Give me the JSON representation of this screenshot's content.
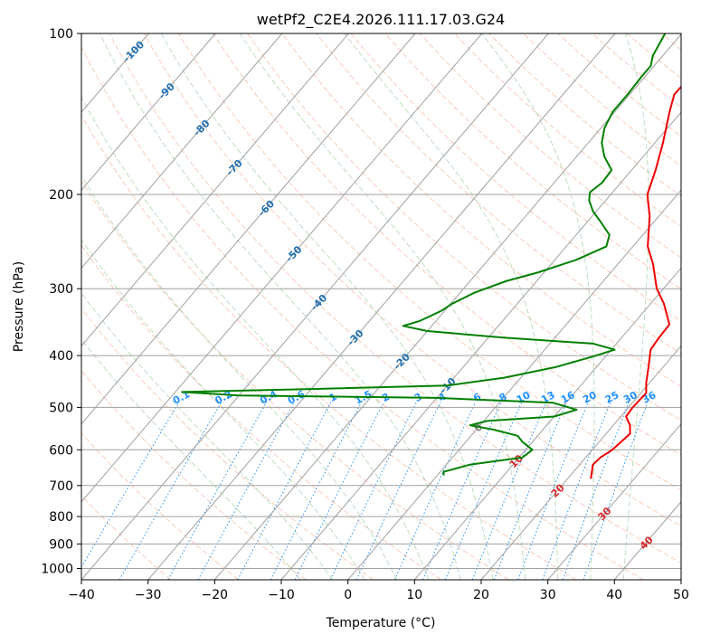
{
  "chart_data": {
    "type": "skew-t",
    "title": "wetPf2_C2E4.2026.111.17.03.G24",
    "xlabel": "Temperature (°C)",
    "ylabel": "Pressure (hPa)",
    "xlim": [
      -40,
      50
    ],
    "ylim": [
      1050,
      100
    ],
    "x_ticks": [
      -40,
      -30,
      -20,
      -10,
      0,
      10,
      20,
      30,
      40,
      50
    ],
    "x_tick_labels": [
      "−40",
      "−30",
      "−20",
      "−10",
      "0",
      "10",
      "20",
      "30",
      "40",
      "50"
    ],
    "y_ticks": [
      100,
      200,
      300,
      400,
      500,
      600,
      700,
      800,
      900,
      1000
    ],
    "y_tick_labels": [
      "100",
      "200",
      "300",
      "400",
      "500",
      "600",
      "700",
      "800",
      "900",
      "1000"
    ],
    "grid": true,
    "colors": {
      "temperature": "#ee0000",
      "dewpoint": "#008000",
      "isotherm": "#a0a0a0",
      "dry_adiabat": "#f4a082",
      "moist_adiabat": "#99cc99",
      "mixing_ratio": "#1e90ff",
      "label_blue": "#1f6fb2",
      "label_red": "#d62728",
      "label_gray": "#808080"
    },
    "series": [
      {
        "name": "Temperature",
        "color": "#ee0000",
        "points": [
          {
            "p": 680,
            "t": 23.5
          },
          {
            "p": 640,
            "t": 22.0
          },
          {
            "p": 620,
            "t": 22.2
          },
          {
            "p": 600,
            "t": 23.0
          },
          {
            "p": 560,
            "t": 23.6
          },
          {
            "p": 540,
            "t": 22.5
          },
          {
            "p": 520,
            "t": 20.8
          },
          {
            "p": 500,
            "t": 20.6
          },
          {
            "p": 470,
            "t": 20.8
          },
          {
            "p": 450,
            "t": 19.5
          },
          {
            "p": 420,
            "t": 17.8
          },
          {
            "p": 390,
            "t": 15.9
          },
          {
            "p": 370,
            "t": 15.6
          },
          {
            "p": 350,
            "t": 15.5
          },
          {
            "p": 320,
            "t": 12.0
          },
          {
            "p": 300,
            "t": 9.0
          },
          {
            "p": 270,
            "t": 5.3
          },
          {
            "p": 250,
            "t": 2.2
          },
          {
            "p": 220,
            "t": -1.3
          },
          {
            "p": 200,
            "t": -4.5
          },
          {
            "p": 180,
            "t": -6.4
          },
          {
            "p": 160,
            "t": -8.8
          },
          {
            "p": 140,
            "t": -11.8
          },
          {
            "p": 130,
            "t": -13.3
          },
          {
            "p": 120,
            "t": -13.2
          },
          {
            "p": 110,
            "t": -15.0
          },
          {
            "p": 100,
            "t": -17.5
          }
        ]
      },
      {
        "name": "Dewpoint",
        "color": "#008000",
        "points": [
          {
            "p": 670,
            "t": 1.0
          },
          {
            "p": 660,
            "t": 0.5
          },
          {
            "p": 640,
            "t": 3.5
          },
          {
            "p": 620,
            "t": 10.5
          },
          {
            "p": 600,
            "t": 11.0
          },
          {
            "p": 580,
            "t": 8.5
          },
          {
            "p": 565,
            "t": 7.0
          },
          {
            "p": 550,
            "t": 2.5
          },
          {
            "p": 540,
            "t": -1.5
          },
          {
            "p": 530,
            "t": 0.5
          },
          {
            "p": 520,
            "t": 10.0
          },
          {
            "p": 505,
            "t": 12.5
          },
          {
            "p": 490,
            "t": 8.0
          },
          {
            "p": 480,
            "t": -10.0
          },
          {
            "p": 475,
            "t": -40.0
          },
          {
            "p": 468,
            "t": -49.0
          },
          {
            "p": 462,
            "t": -30.0
          },
          {
            "p": 455,
            "t": -10.0
          },
          {
            "p": 440,
            "t": -2.5
          },
          {
            "p": 420,
            "t": 4.0
          },
          {
            "p": 400,
            "t": 8.5
          },
          {
            "p": 390,
            "t": 10.5
          },
          {
            "p": 380,
            "t": 6.5
          },
          {
            "p": 370,
            "t": -8.0
          },
          {
            "p": 360,
            "t": -20.0
          },
          {
            "p": 352,
            "t": -24.3
          },
          {
            "p": 345,
            "t": -22.5
          },
          {
            "p": 330,
            "t": -20.5
          },
          {
            "p": 320,
            "t": -19.8
          },
          {
            "p": 305,
            "t": -17.8
          },
          {
            "p": 290,
            "t": -14.5
          },
          {
            "p": 280,
            "t": -11.0
          },
          {
            "p": 265,
            "t": -6.8
          },
          {
            "p": 250,
            "t": -4.0
          },
          {
            "p": 238,
            "t": -5.0
          },
          {
            "p": 225,
            "t": -8.0
          },
          {
            "p": 215,
            "t": -10.5
          },
          {
            "p": 205,
            "t": -12.5
          },
          {
            "p": 198,
            "t": -13.4
          },
          {
            "p": 190,
            "t": -12.8
          },
          {
            "p": 180,
            "t": -13.0
          },
          {
            "p": 170,
            "t": -15.8
          },
          {
            "p": 160,
            "t": -18.0
          },
          {
            "p": 150,
            "t": -19.5
          },
          {
            "p": 140,
            "t": -20.3
          },
          {
            "p": 130,
            "t": -20.3
          },
          {
            "p": 120,
            "t": -20.5
          },
          {
            "p": 115,
            "t": -20.5
          },
          {
            "p": 110,
            "t": -21.5
          },
          {
            "p": 100,
            "t": -22.5
          }
        ]
      }
    ],
    "isotherm_labels": [
      {
        "t": -100,
        "text": "-100",
        "color": "#1f6fb2"
      },
      {
        "t": -90,
        "text": "-90",
        "color": "#1f6fb2"
      },
      {
        "t": -80,
        "text": "-80",
        "color": "#1f6fb2"
      },
      {
        "t": -70,
        "text": "-70",
        "color": "#1f6fb2"
      },
      {
        "t": -60,
        "text": "-60",
        "color": "#1f6fb2"
      },
      {
        "t": -50,
        "text": "-50",
        "color": "#1f6fb2"
      },
      {
        "t": -40,
        "text": "-40",
        "color": "#1f6fb2"
      },
      {
        "t": -30,
        "text": "-30",
        "color": "#1f6fb2"
      },
      {
        "t": -20,
        "text": "-20",
        "color": "#1f6fb2"
      },
      {
        "t": -10,
        "text": "-10",
        "color": "#1f6fb2"
      },
      {
        "t": 0,
        "text": "0",
        "color": "#808080"
      },
      {
        "t": 10,
        "text": "10",
        "color": "#d62728"
      },
      {
        "t": 20,
        "text": "20",
        "color": "#d62728"
      },
      {
        "t": 30,
        "text": "30",
        "color": "#d62728"
      },
      {
        "t": 40,
        "text": "40",
        "color": "#d62728"
      }
    ],
    "mixing_ratio_labels": [
      "0.1",
      "0.2",
      "0.4",
      "0.6",
      "1",
      "1.5",
      "2",
      "3",
      "4",
      "6",
      "8",
      "10",
      "13",
      "16",
      "20",
      "25",
      "30",
      "36"
    ]
  }
}
